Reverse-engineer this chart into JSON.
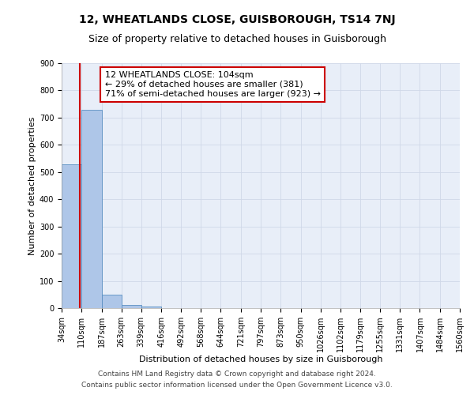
{
  "title": "12, WHEATLANDS CLOSE, GUISBOROUGH, TS14 7NJ",
  "subtitle": "Size of property relative to detached houses in Guisborough",
  "xlabel": "Distribution of detached houses by size in Guisborough",
  "ylabel": "Number of detached properties",
  "bin_edges": [
    34,
    110,
    187,
    263,
    339,
    416,
    492,
    568,
    644,
    721,
    797,
    873,
    950,
    1026,
    1102,
    1179,
    1255,
    1331,
    1407,
    1484,
    1560
  ],
  "bar_heights": [
    527,
    728,
    50,
    12,
    7,
    0,
    0,
    0,
    0,
    0,
    0,
    0,
    0,
    0,
    0,
    0,
    0,
    0,
    0,
    0
  ],
  "bar_color": "#aec6e8",
  "bar_edge_color": "#5a8fc2",
  "property_line_x": 104,
  "property_line_color": "#cc0000",
  "annotation_text": "12 WHEATLANDS CLOSE: 104sqm\n← 29% of detached houses are smaller (381)\n71% of semi-detached houses are larger (923) →",
  "annotation_box_color": "#ffffff",
  "annotation_box_edge_color": "#cc0000",
  "ylim": [
    0,
    900
  ],
  "yticks": [
    0,
    100,
    200,
    300,
    400,
    500,
    600,
    700,
    800,
    900
  ],
  "tick_labels": [
    "34sqm",
    "110sqm",
    "187sqm",
    "263sqm",
    "339sqm",
    "416sqm",
    "492sqm",
    "568sqm",
    "644sqm",
    "721sqm",
    "797sqm",
    "873sqm",
    "950sqm",
    "1026sqm",
    "1102sqm",
    "1179sqm",
    "1255sqm",
    "1331sqm",
    "1407sqm",
    "1484sqm",
    "1560sqm"
  ],
  "footer_lines": [
    "Contains HM Land Registry data © Crown copyright and database right 2024.",
    "Contains public sector information licensed under the Open Government Licence v3.0."
  ],
  "grid_color": "#d0d8e8",
  "background_color": "#e8eef8",
  "title_fontsize": 10,
  "subtitle_fontsize": 9,
  "annotation_fontsize": 8,
  "footer_fontsize": 6.5,
  "axis_label_fontsize": 8,
  "tick_fontsize": 7
}
